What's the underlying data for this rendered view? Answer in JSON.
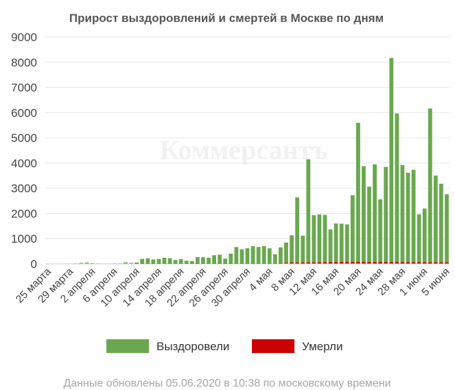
{
  "watermark": "Коммерсантъ",
  "footer": "Данные обновлены 05.06.2020 в 10:38 по московскому времени",
  "colors": {
    "recovered": "#6aa84f",
    "died": "#cc0000"
  },
  "chart_data": {
    "type": "bar",
    "stacked": true,
    "title": "Прирост выздоровлений и смертей в Москве по дням",
    "ylim": [
      0,
      9000
    ],
    "yticks": [
      0,
      1000,
      2000,
      3000,
      4000,
      5000,
      6000,
      7000,
      8000,
      9000
    ],
    "grid": true,
    "legend": "bottom",
    "x_start": "2020-03-25",
    "x_labels": [
      "25 марта",
      "29 марта",
      "2 апреля",
      "6 апреля",
      "10 апреля",
      "14 апреля",
      "18 апреля",
      "22 апреля",
      "26 апреля",
      "30 апреля",
      "4 мая",
      "8 мая",
      "12 мая",
      "16 мая",
      "20 мая",
      "24 мая",
      "28 мая",
      "1 июня",
      "5 июня"
    ],
    "series": [
      {
        "name": "Выздоровели",
        "values": [
          5,
          0,
          0,
          10,
          15,
          20,
          40,
          50,
          30,
          20,
          15,
          15,
          20,
          20,
          60,
          40,
          50,
          200,
          220,
          170,
          190,
          240,
          220,
          150,
          180,
          120,
          100,
          260,
          250,
          230,
          330,
          350,
          190,
          390,
          650,
          560,
          600,
          680,
          650,
          680,
          590,
          350,
          620,
          800,
          1080,
          2580,
          1060,
          4090,
          1870,
          1900,
          1880,
          1300,
          1530,
          1520,
          1490,
          2650,
          5520,
          3800,
          2990,
          3880,
          2490,
          3780,
          8100,
          5900,
          3850,
          3550,
          3670,
          1900,
          2130,
          6100,
          3440,
          3120,
          2700
        ]
      },
      {
        "name": "Умерли",
        "values": [
          0,
          0,
          0,
          0,
          0,
          0,
          0,
          0,
          0,
          0,
          0,
          0,
          0,
          0,
          0,
          0,
          1,
          2,
          2,
          3,
          4,
          5,
          6,
          7,
          8,
          9,
          10,
          10,
          12,
          14,
          15,
          16,
          17,
          18,
          19,
          20,
          20,
          22,
          22,
          25,
          30,
          30,
          35,
          45,
          55,
          55,
          60,
          60,
          60,
          62,
          65,
          70,
          72,
          75,
          76,
          76,
          76,
          75,
          73,
          70,
          72,
          70,
          70,
          68,
          67,
          66,
          65,
          65,
          64,
          63,
          62,
          61,
          60
        ]
      }
    ]
  }
}
